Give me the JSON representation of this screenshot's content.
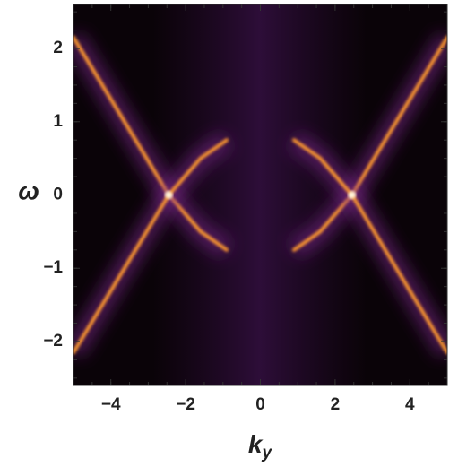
{
  "chart_data": {
    "type": "density",
    "xlabel": {
      "base": "k",
      "sub": "y"
    },
    "ylabel": "ω",
    "xlim": [
      -5,
      5
    ],
    "ylim": [
      -2.6,
      2.6
    ],
    "xticks": [
      {
        "value": -4,
        "label": "−4"
      },
      {
        "value": -2,
        "label": "−2"
      },
      0,
      2,
      4
    ],
    "yticks": [
      {
        "value": -2,
        "label": "−2"
      },
      {
        "value": -1,
        "label": "−1"
      },
      0,
      1,
      2
    ],
    "background": "#0a0308",
    "series": [
      {
        "color": "#ff9a2e",
        "x": [
          -5,
          -2.45,
          -1.6,
          -0.9
        ],
        "values": [
          2.15,
          0,
          -0.5,
          -0.75
        ]
      },
      {
        "color": "#ff9a2e",
        "x": [
          -5,
          -2.45,
          -1.6,
          -0.9
        ],
        "values": [
          -2.15,
          0,
          0.5,
          0.75
        ]
      },
      {
        "color": "#ff9a2e",
        "x": [
          5,
          2.45,
          1.6,
          0.9
        ],
        "values": [
          2.15,
          0,
          -0.5,
          -0.75
        ]
      },
      {
        "color": "#ff9a2e",
        "x": [
          5,
          2.45,
          1.6,
          0.9
        ],
        "values": [
          -2.15,
          0,
          0.5,
          0.75
        ]
      }
    ]
  }
}
